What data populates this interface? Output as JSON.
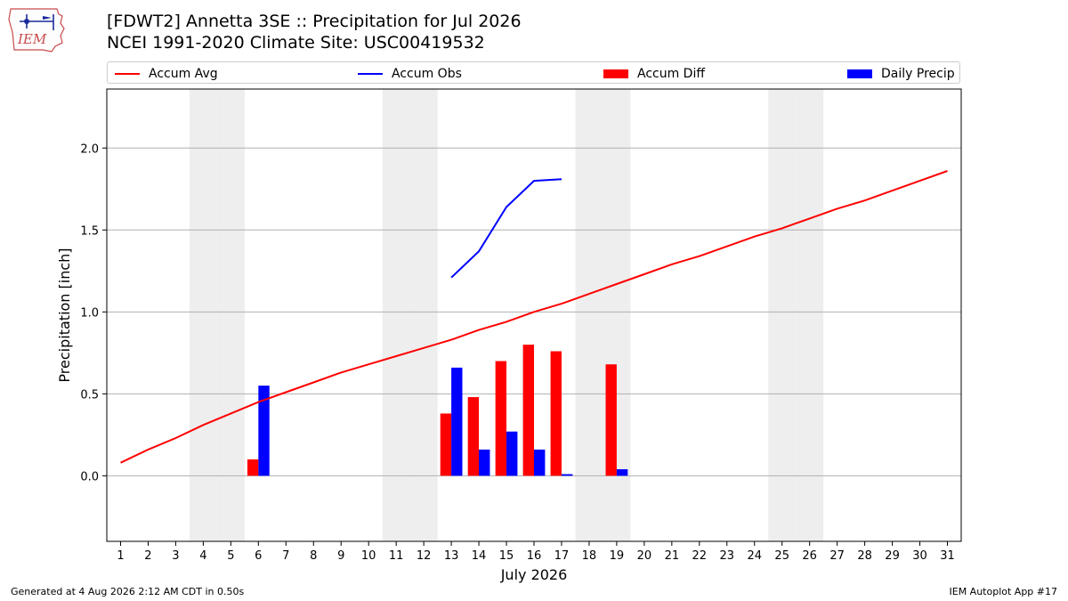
{
  "header": {
    "title_line1": "[FDWT2] Annetta 3SE :: Precipitation for Jul 2026",
    "title_line2": "NCEI 1991-2020 Climate Site: USC00419532",
    "logo_text": "IEM"
  },
  "legend": {
    "items": [
      {
        "label": "Accum Avg",
        "kind": "line",
        "color": "#ff0000"
      },
      {
        "label": "Accum Obs",
        "kind": "line",
        "color": "#0000ff"
      },
      {
        "label": "Accum Diff",
        "kind": "patch",
        "color": "#ff0000"
      },
      {
        "label": "Daily Precip",
        "kind": "patch",
        "color": "#0000ff"
      }
    ]
  },
  "chart_data": {
    "type": "bar",
    "xlabel": "July 2026",
    "ylabel": "Precipitation [inch]",
    "ylim": [
      -0.4,
      2.36
    ],
    "xlim": [
      0.5,
      31.5
    ],
    "yticks": [
      0.0,
      0.5,
      1.0,
      1.5,
      2.0
    ],
    "ytick_labels": [
      "0.0",
      "0.5",
      "1.0",
      "1.5",
      "2.0"
    ],
    "days": [
      1,
      2,
      3,
      4,
      5,
      6,
      7,
      8,
      9,
      10,
      11,
      12,
      13,
      14,
      15,
      16,
      17,
      18,
      19,
      20,
      21,
      22,
      23,
      24,
      25,
      26,
      27,
      28,
      29,
      30,
      31
    ],
    "grid": "horizontal",
    "weekend_shading_days": [
      4,
      5,
      11,
      12,
      18,
      19,
      25,
      26
    ],
    "shade_color": "#eeeeee",
    "series": [
      {
        "name": "Accum Avg",
        "kind": "line",
        "color": "#ff0000",
        "x": [
          1,
          2,
          3,
          4,
          5,
          6,
          7,
          8,
          9,
          10,
          11,
          12,
          13,
          14,
          15,
          16,
          17,
          18,
          19,
          20,
          21,
          22,
          23,
          24,
          25,
          26,
          27,
          28,
          29,
          30,
          31
        ],
        "values": [
          0.08,
          0.16,
          0.23,
          0.31,
          0.38,
          0.45,
          0.51,
          0.57,
          0.63,
          0.68,
          0.73,
          0.78,
          0.83,
          0.89,
          0.94,
          1.0,
          1.05,
          1.11,
          1.17,
          1.23,
          1.29,
          1.34,
          1.4,
          1.46,
          1.51,
          1.57,
          1.63,
          1.68,
          1.74,
          1.8,
          1.86
        ]
      },
      {
        "name": "Accum Obs",
        "kind": "line",
        "color": "#0000ff",
        "x": [
          13,
          14,
          15,
          16,
          17
        ],
        "values": [
          1.21,
          1.37,
          1.64,
          1.8,
          1.81
        ]
      },
      {
        "name": "Accum Diff",
        "kind": "bar",
        "color": "#ff0000",
        "x": [
          6,
          13,
          14,
          15,
          16,
          17,
          19
        ],
        "values": [
          0.1,
          0.38,
          0.48,
          0.7,
          0.8,
          0.76,
          0.68
        ]
      },
      {
        "name": "Daily Precip",
        "kind": "bar",
        "color": "#0000ff",
        "x": [
          6,
          13,
          14,
          15,
          16,
          17,
          19
        ],
        "values": [
          0.55,
          0.66,
          0.16,
          0.27,
          0.16,
          0.01,
          0.04
        ]
      }
    ]
  },
  "footer": {
    "left": "Generated at 4 Aug 2026 2:12 AM CDT in 0.50s",
    "right": "IEM Autoplot App #17"
  }
}
